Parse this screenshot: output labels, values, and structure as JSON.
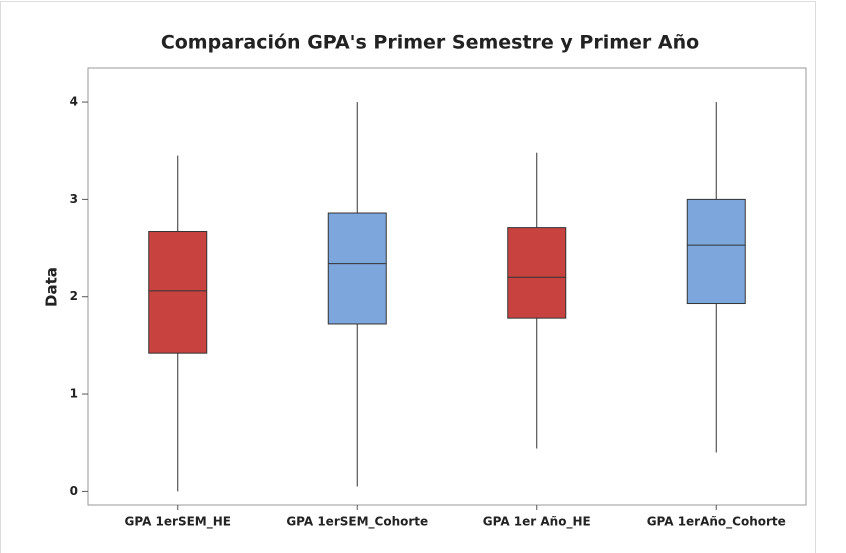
{
  "chart_data": {
    "type": "box",
    "title": "Comparación GPA's Primer Semestre y Primer Año",
    "ylabel": "Data",
    "categories": [
      "GPA 1erSEM_HE",
      "GPA 1erSEM_Cohorte",
      "GPA 1er Año_HE",
      "GPA 1erAño_Cohorte"
    ],
    "boxes": [
      {
        "min": 0,
        "q1": 1.42,
        "median": 2.06,
        "q3": 2.67,
        "max": 3.45,
        "color": "#c84340"
      },
      {
        "min": 0.05,
        "q1": 1.72,
        "median": 2.34,
        "q3": 2.86,
        "max": 4.0,
        "color": "#7da6dc"
      },
      {
        "min": 0.44,
        "q1": 1.78,
        "median": 2.2,
        "q3": 2.71,
        "max": 3.48,
        "color": "#c84340"
      },
      {
        "min": 0.4,
        "q1": 1.93,
        "median": 2.53,
        "q3": 3.0,
        "max": 4.0,
        "color": "#7da6dc"
      }
    ],
    "ylim": [
      -0.14,
      4.35
    ],
    "yticks": [
      0,
      1,
      2,
      3,
      4
    ]
  }
}
